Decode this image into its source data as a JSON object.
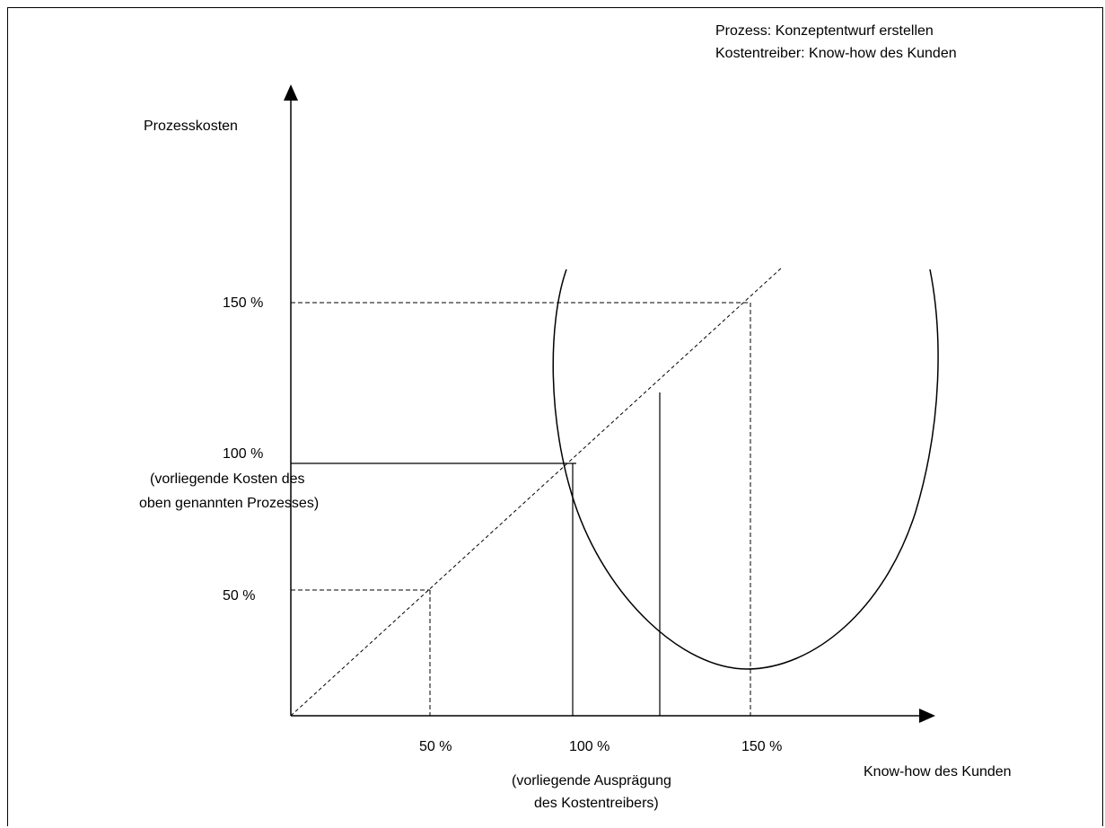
{
  "header": {
    "line1": "Prozess: Konzeptentwurf erstellen",
    "line2": "Kostentreiber: Know-how des Kunden"
  },
  "axes": {
    "y_label": "Prozesskosten",
    "x_label": "Know-how des Kunden"
  },
  "y_ticks": {
    "t150": "150 %",
    "t100": "100 %",
    "t100_note1": "(vorliegende Kosten des",
    "t100_note2": "oben genannten Prozesses)",
    "t50": "50 %"
  },
  "x_ticks": {
    "t50": "50 %",
    "t100": "100 %",
    "t150": "150 %",
    "t100_note1": "(vorliegende Ausprägung",
    "t100_note2": "des Kostentreibers)"
  },
  "colors": {
    "ink": "#000000",
    "background": "#ffffff"
  }
}
